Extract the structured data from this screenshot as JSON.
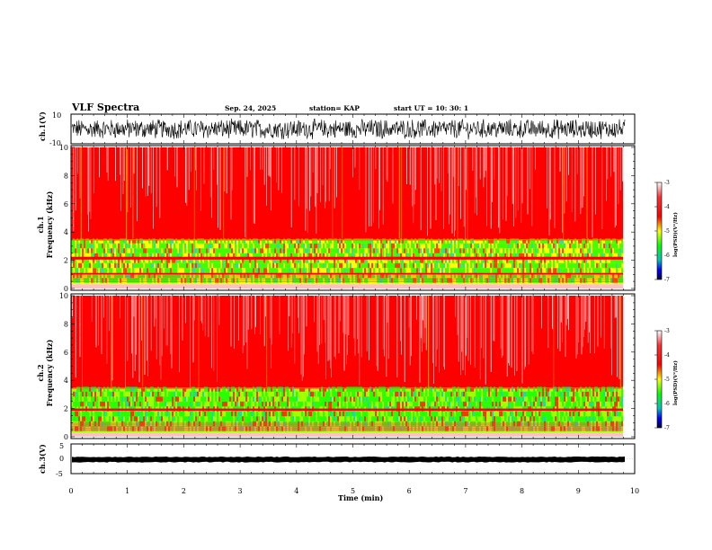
{
  "header": {
    "title": "VLF Spectra",
    "date": "Sep. 24, 2025",
    "station": "station= KAP",
    "start": "start UT =   10: 30: 1"
  },
  "chart_data": [
    {
      "type": "line",
      "ylabel": "ch.1(V)",
      "ylim": [
        -10,
        10
      ],
      "yticks": [
        "10",
        "-10"
      ],
      "xlim": [
        0,
        10
      ],
      "description_values": {
        "typical_range": [
          -6,
          6
        ]
      }
    },
    {
      "type": "heatmap",
      "ylabel_line1": "ch.1",
      "ylabel_line2": "Frequency (kHz)",
      "ylim": [
        0,
        10
      ],
      "yticks": [
        "0",
        "2",
        "4",
        "6",
        "8",
        "10"
      ],
      "xlim": [
        0,
        9.83
      ],
      "colorbar": {
        "ticks": [
          "-3",
          "-4",
          "-5",
          "-6",
          "-7"
        ],
        "label": "log(PSD)(V²/Hz)",
        "range": [
          -7,
          -3
        ]
      },
      "bands": [
        {
          "freq_khz": [
            3.4,
            10
          ],
          "level": -3.6
        },
        {
          "freq_khz": [
            0.3,
            3.4
          ],
          "level": -4.9
        },
        {
          "freq_khz": [
            2.05,
            2.25
          ],
          "level": -3.8
        },
        {
          "freq_khz": [
            1.0,
            1.1
          ],
          "level": -3.8
        }
      ]
    },
    {
      "type": "heatmap",
      "ylabel_line1": "ch.2",
      "ylabel_line2": "Frequency (kHz)",
      "ylim": [
        0,
        10
      ],
      "yticks": [
        "0",
        "2",
        "4",
        "6",
        "8",
        "10"
      ],
      "xlim": [
        0,
        9.83
      ],
      "colorbar": {
        "ticks": [
          "-3",
          "-4",
          "-5",
          "-6",
          "-7"
        ],
        "label": "log(PSD)(V²/Hz)",
        "range": [
          -7,
          -3
        ]
      },
      "bands": [
        {
          "freq_khz": [
            3.4,
            10
          ],
          "level": -3.6
        },
        {
          "freq_khz": [
            0.3,
            3.4
          ],
          "level": -5.0
        },
        {
          "freq_khz": [
            1.85,
            2.0
          ],
          "level": -3.9
        }
      ]
    },
    {
      "type": "line",
      "ylabel": "ch.3(V)",
      "ylim": [
        -5,
        5
      ],
      "yticks": [
        "5",
        "0",
        "-5"
      ],
      "xlim": [
        0,
        10
      ],
      "description_values": {
        "typical_range": [
          -1,
          0.5
        ]
      }
    }
  ],
  "xaxis": {
    "label": "Time (min)",
    "ticks": [
      "0",
      "1",
      "2",
      "3",
      "4",
      "5",
      "6",
      "7",
      "8",
      "9",
      "10"
    ]
  },
  "colors": {
    "trace": "#000000",
    "high": "#ff0000",
    "mid": "#ffff00",
    "low": "#00ff00",
    "lowest": "#000080"
  }
}
